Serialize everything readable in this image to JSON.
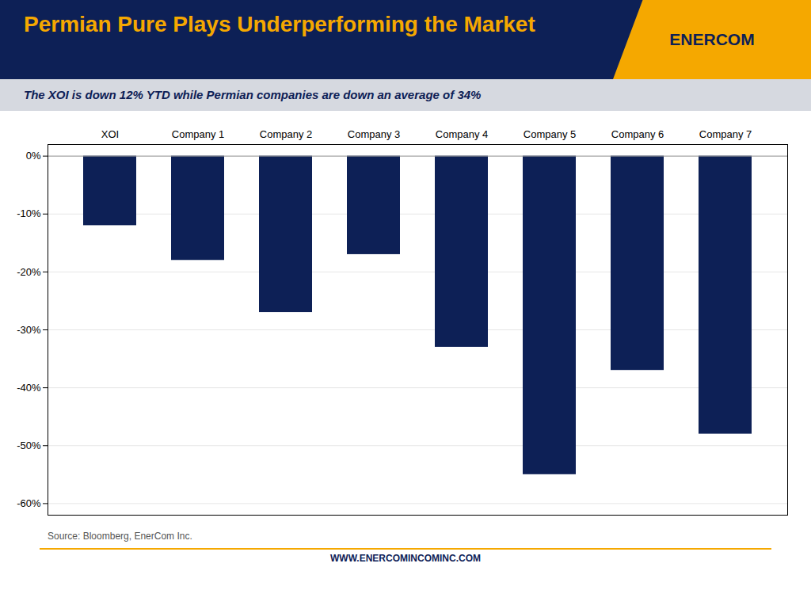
{
  "chart_data": {
    "type": "bar",
    "title": "Permian Pure Plays Underperforming the Market",
    "subtitle": "The XOI is down 12% YTD while Permian companies are down an average of 34%",
    "annotations": [
      "ENERCOM",
      "Source: Bloomberg, EnerCom Inc.",
      "WWW.ENERCOMINCOMINC.COM"
    ],
    "categories": [
      "XOI",
      "Company 1",
      "Company 2",
      "Company 3",
      "Company 4",
      "Company 5",
      "Company 6",
      "Company 7"
    ],
    "values": [
      -12,
      -18,
      -27,
      -17,
      -33,
      -55,
      -37,
      -48
    ],
    "color": "#0D2056",
    "ylim": [
      -62,
      2
    ],
    "yticks": [
      {
        "value": 0,
        "label": "0%"
      },
      {
        "value": -10,
        "label": "-10%"
      },
      {
        "value": -20,
        "label": "-20%"
      },
      {
        "value": -30,
        "label": "-30%"
      },
      {
        "value": -40,
        "label": "-40%"
      },
      {
        "value": -50,
        "label": "-50%"
      },
      {
        "value": -60,
        "label": "-60%"
      }
    ],
    "grid": true
  }
}
